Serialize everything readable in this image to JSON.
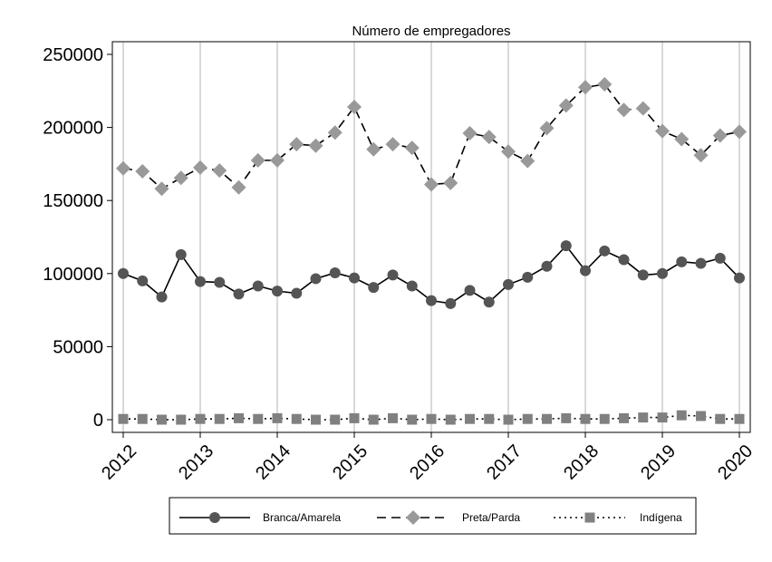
{
  "chart_data": {
    "type": "line",
    "title": "Número de empregadores",
    "xlabel": "",
    "ylabel": "",
    "x_ticks": [
      "2012",
      "2013",
      "2014",
      "2015",
      "2016",
      "2017",
      "2018",
      "2019",
      "2020"
    ],
    "y_ticks": [
      "0",
      "50000",
      "100000",
      "150000",
      "200000",
      "250000"
    ],
    "ylim": [
      0,
      250000
    ],
    "xlim": [
      2012,
      2020
    ],
    "grid": "vertical",
    "legend_position": "bottom",
    "x": [
      2012.0,
      2012.25,
      2012.5,
      2012.75,
      2013.0,
      2013.25,
      2013.5,
      2013.75,
      2014.0,
      2014.25,
      2014.5,
      2014.75,
      2015.0,
      2015.25,
      2015.5,
      2015.75,
      2016.0,
      2016.25,
      2016.5,
      2016.75,
      2017.0,
      2017.25,
      2017.5,
      2017.75,
      2018.0,
      2018.25,
      2018.5,
      2018.75,
      2019.0,
      2019.25,
      2019.5,
      2019.75,
      2020.0
    ],
    "series": [
      {
        "name": "Branca/Amarela",
        "color": "#555555",
        "dash": "solid",
        "marker": "circle",
        "values": [
          100000,
          95000,
          84000,
          113000,
          94500,
          94000,
          86000,
          91500,
          88000,
          86500,
          96500,
          100500,
          97000,
          90500,
          99000,
          91500,
          81500,
          79500,
          88500,
          80500,
          92500,
          97500,
          105000,
          119000,
          102000,
          115500,
          109500,
          99000,
          100000,
          108000,
          107000,
          110500,
          97000
        ]
      },
      {
        "name": "Preta/Parda",
        "color": "#999999",
        "dash": "dashed",
        "marker": "diamond",
        "values": [
          172000,
          170000,
          158000,
          165500,
          172500,
          170500,
          159000,
          177500,
          177500,
          188500,
          187500,
          196500,
          214000,
          185000,
          188500,
          186000,
          161000,
          162000,
          196000,
          193500,
          183500,
          177000,
          199500,
          215000,
          227500,
          229500,
          212000,
          213000,
          197500,
          192000,
          181000,
          194500,
          197000
        ]
      },
      {
        "name": "Indígena",
        "color": "#808080",
        "dash": "dotted",
        "marker": "square",
        "values": [
          500,
          500,
          0,
          0,
          500,
          500,
          1000,
          500,
          1000,
          500,
          0,
          0,
          1000,
          0,
          1000,
          0,
          500,
          0,
          500,
          500,
          0,
          500,
          500,
          1000,
          500,
          500,
          1000,
          1500,
          1500,
          3000,
          2500,
          500,
          500
        ]
      }
    ]
  }
}
